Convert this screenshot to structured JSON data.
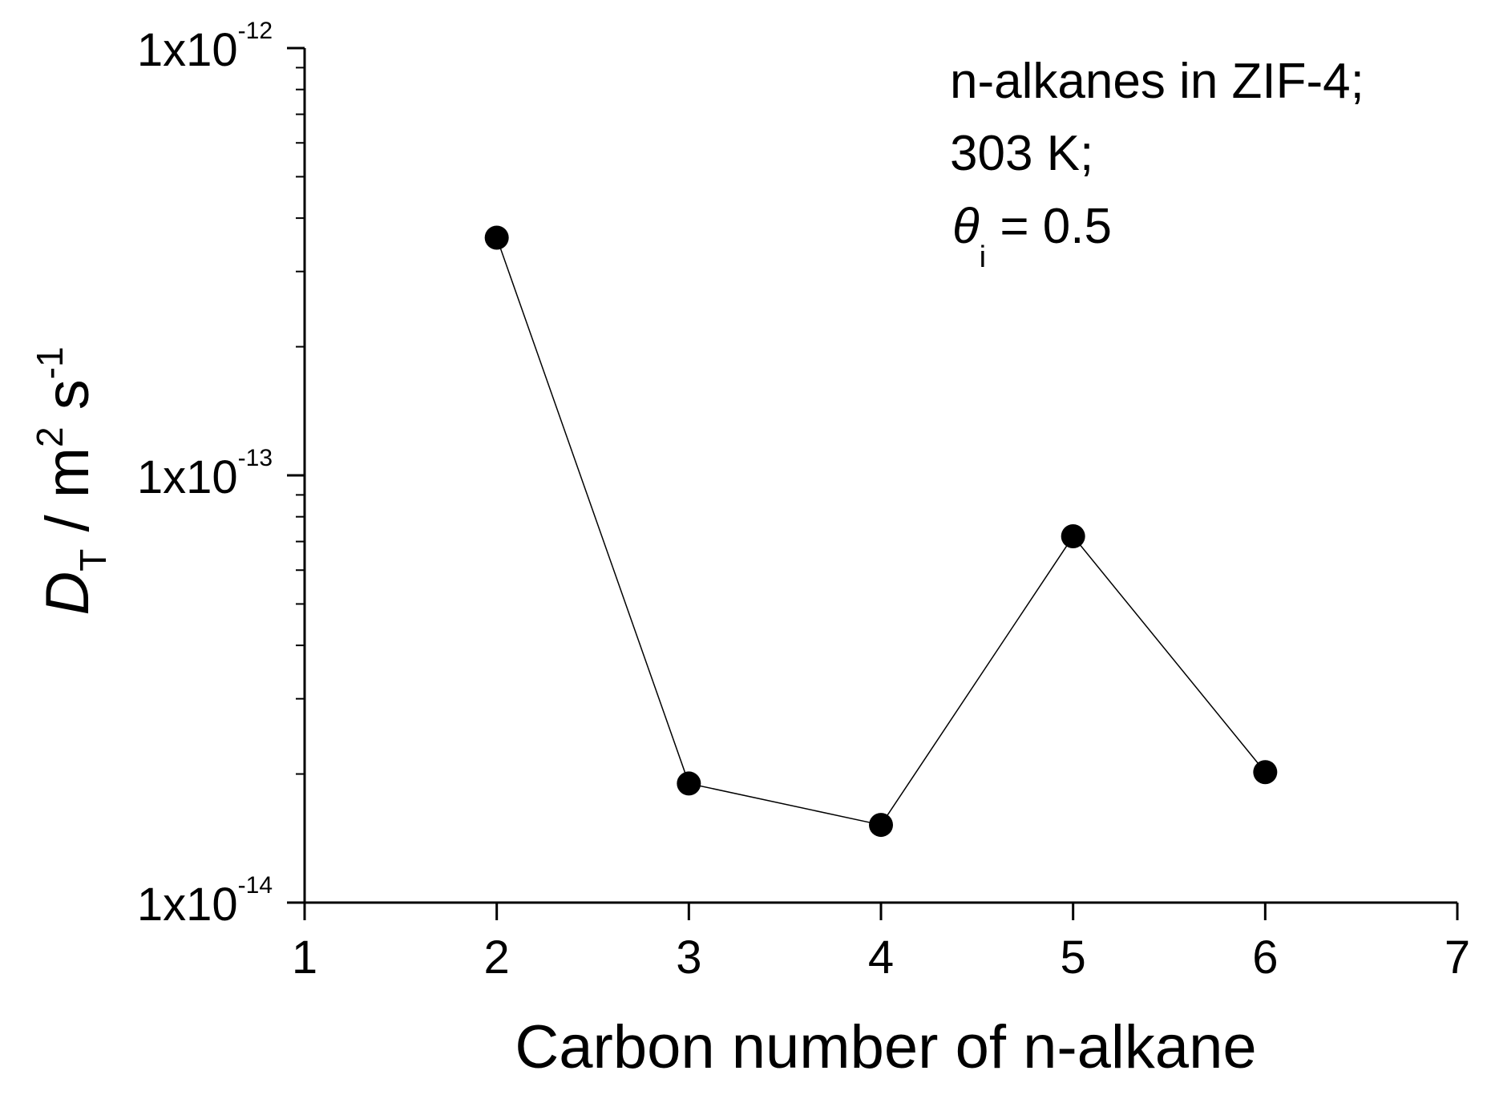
{
  "chart_data": {
    "type": "scatter",
    "x": [
      2,
      3,
      4,
      5,
      6
    ],
    "y": [
      3.6e-13,
      1.9e-14,
      1.52e-14,
      7.2e-14,
      2.02e-14
    ],
    "connected": true,
    "marker": "filled-circle",
    "xlabel": "Carbon number of n-alkane",
    "ylabel": {
      "main": "D",
      "sub": "T",
      "unit_pre": " / m",
      "unit_sup1": "2",
      "unit_mid": " s",
      "unit_sup2": "-1"
    },
    "xlim": [
      1,
      7
    ],
    "ylim": [
      1e-14,
      1e-12
    ],
    "yscale": "log",
    "xticks": [
      "1",
      "2",
      "3",
      "4",
      "5",
      "6",
      "7"
    ],
    "yticks": [
      {
        "base": "1x10",
        "exp": "-12",
        "value": 1e-12
      },
      {
        "base": "1x10",
        "exp": "-13",
        "value": 1e-13
      },
      {
        "base": "1x10",
        "exp": "-14",
        "value": 1e-14
      }
    ],
    "grid": false,
    "annotation": {
      "line1": "n-alkanes in ZIF-4;",
      "line2": "303 K;",
      "line3_symbol": "θ",
      "line3_sub": "i",
      "line3_rest": " = 0.5"
    },
    "colors": {
      "marker": "#000000",
      "line": "#000000",
      "axis": "#000000"
    }
  }
}
